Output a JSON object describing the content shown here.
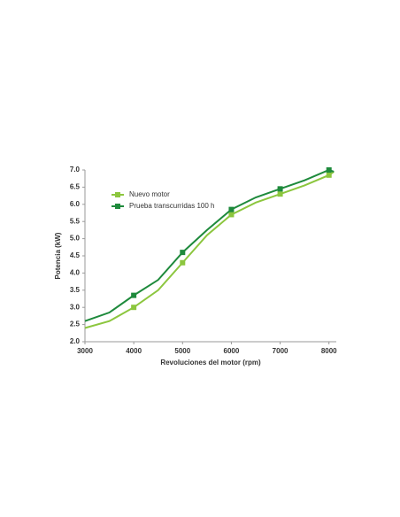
{
  "chart_data": {
    "type": "line",
    "x_label": "Revoluciones del motor (rpm)",
    "y_label": "Potencia (kW)",
    "x": [
      3000,
      3500,
      4000,
      4500,
      5000,
      5500,
      6000,
      6500,
      7000,
      7500,
      8000,
      8100
    ],
    "series": [
      {
        "name": "Nuevo motor",
        "color": "#8cc63e",
        "values": [
          2.4,
          2.6,
          3.0,
          3.5,
          4.3,
          5.1,
          5.7,
          6.05,
          6.3,
          6.55,
          6.85,
          6.95
        ]
      },
      {
        "name": "Prueba transcurridas 100 h",
        "color": "#1e8a3c",
        "values": [
          2.6,
          2.85,
          3.35,
          3.8,
          4.6,
          5.25,
          5.85,
          6.2,
          6.45,
          6.7,
          7.0,
          6.95
        ]
      }
    ],
    "xlim": [
      3000,
      8150
    ],
    "xticks": [
      3000,
      4000,
      5000,
      6000,
      7000,
      8000
    ],
    "ylim": [
      2,
      7
    ],
    "yticks": [
      {
        "value": 2,
        "label": "2.0"
      },
      {
        "value": 2.5,
        "label": "2.5"
      },
      {
        "value": 3,
        "label": "3.0"
      },
      {
        "value": 3.5,
        "label": "3.5"
      },
      {
        "value": 4,
        "label": "4.0"
      },
      {
        "value": 4.5,
        "label": "4.5"
      },
      {
        "value": 5,
        "label": "5.0"
      },
      {
        "value": 5.5,
        "label": "5.5"
      },
      {
        "value": 6,
        "label": "6.0"
      },
      {
        "value": 6.5,
        "label": "6.5"
      },
      {
        "value": 7,
        "label": "7.0"
      }
    ],
    "grid": false,
    "legend": "upper-left"
  }
}
